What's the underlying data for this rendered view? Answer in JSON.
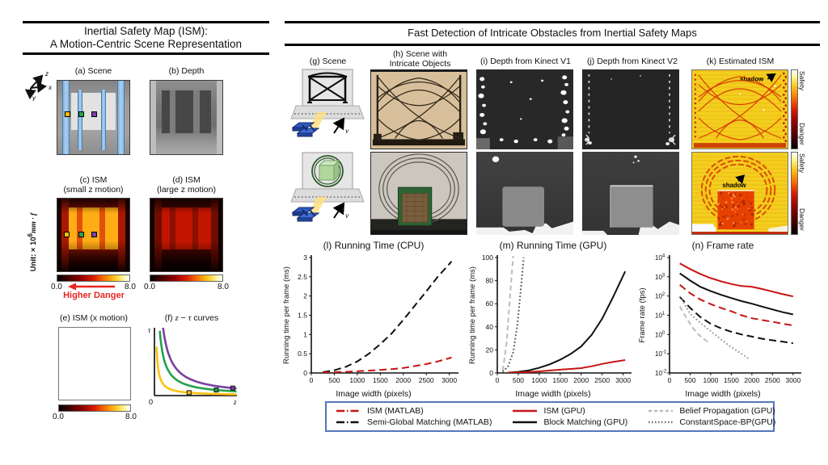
{
  "left_panel": {
    "title_line1": "Inertial Safety Map (ISM):",
    "title_line2": "A Motion-Centric Scene Representation",
    "axis_glyph": {
      "up_right": "z",
      "right": "x",
      "down": "y"
    },
    "label_a": "(a) Scene",
    "label_b": "(b) Depth",
    "label_c1": "(c) ISM",
    "label_c2": "(small z motion)",
    "label_d1": "(d) ISM",
    "label_d2": "(large z motion)",
    "label_e": "(e) ISM (x motion)",
    "f_label": {
      "pre": "(f) ",
      "z": "z",
      "minus": " − ",
      "tau": "τ",
      "post": " curves"
    },
    "unit": {
      "prefix": "Unit: × 10",
      "exp": "6",
      "suffix": "mm · f"
    },
    "cbar_min": "0.0",
    "cbar_max": "8.0",
    "higher_danger": "Higher Danger",
    "danger_color": "#E8251F",
    "marker_colors": [
      "#FFB90A",
      "#28A34D",
      "#7B3FA0"
    ]
  },
  "right_panel": {
    "title": "Fast Detection of Intricate Obstacles from Inertial Safety Maps",
    "label_g": "(g) Scene",
    "label_h_line1": "(h) Scene with",
    "label_h_line2": "Intricate Objects",
    "label_i": "(i) Depth from Kinect V1",
    "label_j": "(j) Depth from Kinect V2",
    "label_k": "(k) Estimated ISM",
    "velocity": "v",
    "shadow": "shadow",
    "colorbar_top": "Safety",
    "colorbar_bottom": "Danger"
  },
  "legend": {
    "border_color": "#5577B8",
    "items": [
      {
        "label": "ISM (MATLAB)",
        "color": "#C81414",
        "sample_dash": "10,3,1.5,3"
      },
      {
        "label": "Semi-Global Matching (MATLAB)",
        "color": "#111111",
        "sample_dash": "10,3,1.5,3"
      },
      {
        "label": "ISM (GPU)",
        "color": "#C81414",
        "sample_dash": ""
      },
      {
        "label": "Block Matching (GPU)",
        "color": "#111111",
        "sample_dash": ""
      },
      {
        "label": "Belief Propagation (GPU)",
        "color": "#BBBBBB",
        "sample_dash": "4,3"
      },
      {
        "label": "ConstantSpace-BP(GPU)",
        "color": "#777777",
        "sample_dash": "1.6,2.4"
      }
    ]
  },
  "chart_data": [
    {
      "id": "f",
      "type": "line",
      "title": "(f) z − τ curves",
      "xlabel": "z",
      "ylabel": "τ",
      "origin_label": "0",
      "description": "Schematic hyperbolic safe-time boundaries τ = k/z for three scene points",
      "series": [
        {
          "name": "near point curve",
          "color": "#FFC20E",
          "k": 0.018,
          "marker_x": 0.42
        },
        {
          "name": "mid point curve",
          "color": "#22A14C",
          "k": 0.062,
          "marker_x": 0.75
        },
        {
          "name": "far point curve",
          "color": "#7B3FA0",
          "k": 0.105,
          "marker_x": 0.95
        }
      ]
    },
    {
      "id": "l",
      "type": "line",
      "title": "(l) Running Time (CPU)",
      "xlabel": "Image width (pixels)",
      "ylabel": "Running time per frame (ms)",
      "xlim": [
        0,
        3200
      ],
      "ylim": [
        0,
        3
      ],
      "xticks": [
        0,
        500,
        1000,
        1500,
        2000,
        2500,
        3000
      ],
      "yticks": [
        0,
        0.5,
        1,
        1.5,
        2,
        2.5,
        3
      ],
      "series": [
        {
          "name": "Semi-Global Matching (MATLAB)",
          "color": "#111111",
          "dash": "9,5",
          "x": [
            250,
            500,
            750,
            1000,
            1250,
            1500,
            1750,
            2000,
            2250,
            2500,
            2750,
            3050
          ],
          "y": [
            0.02,
            0.07,
            0.16,
            0.3,
            0.5,
            0.75,
            1.03,
            1.38,
            1.75,
            2.12,
            2.5,
            2.9
          ]
        },
        {
          "name": "ISM (MATLAB)",
          "color": "#C81414",
          "dash": "9,5",
          "x": [
            250,
            500,
            750,
            1000,
            1250,
            1500,
            1750,
            2000,
            2250,
            2500,
            2750,
            3050
          ],
          "y": [
            0.01,
            0.02,
            0.03,
            0.045,
            0.06,
            0.08,
            0.1,
            0.13,
            0.18,
            0.23,
            0.3,
            0.4
          ]
        }
      ]
    },
    {
      "id": "m",
      "type": "line",
      "title": "(m) Running Time (GPU)",
      "xlabel": "Image width (pixels)",
      "ylabel": "Running time per frame (ms)",
      "xlim": [
        0,
        3200
      ],
      "ylim": [
        0,
        100
      ],
      "xticks": [
        0,
        500,
        1000,
        1500,
        2000,
        2500,
        3000
      ],
      "yticks": [
        0,
        20,
        40,
        60,
        80,
        100
      ],
      "series": [
        {
          "name": "Belief Propagation (GPU)",
          "color": "#BBBBBB",
          "dash": "6,4",
          "x": [
            130,
            220,
            300,
            380
          ],
          "y": [
            2,
            25,
            65,
            102
          ]
        },
        {
          "name": "ConstantSpace-BP(GPU)",
          "color": "#555555",
          "dash": "1.8,2.6",
          "x": [
            130,
            260,
            380,
            480,
            560,
            630
          ],
          "y": [
            1,
            6,
            18,
            42,
            72,
            100
          ]
        },
        {
          "name": "Block Matching (GPU)",
          "color": "#111111",
          "x": [
            250,
            500,
            750,
            1000,
            1250,
            1500,
            1750,
            2000,
            2250,
            2500,
            2750,
            3050
          ],
          "y": [
            0.3,
            1,
            2.2,
            4.5,
            7.5,
            11.5,
            16.5,
            23,
            33,
            47,
            65,
            88
          ]
        },
        {
          "name": "ISM (GPU)",
          "color": "#C81414",
          "x": [
            250,
            500,
            750,
            1000,
            1250,
            1500,
            1750,
            2000,
            2250,
            2500,
            2750,
            3050
          ],
          "y": [
            0.2,
            0.4,
            0.8,
            1.4,
            2.1,
            2.9,
            3.5,
            4.2,
            5.8,
            7.8,
            9.5,
            11.2
          ]
        }
      ]
    },
    {
      "id": "n",
      "type": "line",
      "yscale": "log",
      "title": "(n) Frame rate",
      "xlabel": "Image width (pixels)",
      "ylabel": "Frame rate (fps)",
      "xlim": [
        0,
        3200
      ],
      "ylim": [
        0.01,
        10000
      ],
      "xticks": [
        0,
        500,
        1000,
        1500,
        2000,
        2500,
        3000
      ],
      "yticks_exp": [
        -2,
        -1,
        0,
        1,
        2,
        3,
        4
      ],
      "series": [
        {
          "name": "ISM (GPU)",
          "color": "#C81414",
          "x": [
            250,
            500,
            750,
            1000,
            1250,
            1500,
            1750,
            2000,
            2250,
            2500,
            2750,
            3000
          ],
          "y": [
            5000,
            2500,
            1400,
            850,
            580,
            420,
            330,
            300,
            230,
            170,
            125,
            95
          ]
        },
        {
          "name": "Block Matching (GPU)",
          "color": "#111111",
          "x": [
            250,
            500,
            750,
            1000,
            1250,
            1500,
            1750,
            2000,
            2250,
            2500,
            2750,
            3000
          ],
          "y": [
            1500,
            640,
            300,
            180,
            115,
            78,
            54,
            40,
            28,
            20,
            14.5,
            11
          ]
        },
        {
          "name": "ISM (MATLAB)",
          "color": "#C81414",
          "dash": "9,5",
          "x": [
            250,
            500,
            750,
            1000,
            1250,
            1500,
            1750,
            2000,
            2250,
            2500,
            2750,
            3000
          ],
          "y": [
            380,
            140,
            65,
            38,
            24,
            16,
            10,
            7,
            5.6,
            4.6,
            3.6,
            3
          ]
        },
        {
          "name": "Semi-Global Matching (MATLAB)",
          "color": "#111111",
          "dash": "9,5",
          "x": [
            250,
            500,
            750,
            1000,
            1250,
            1500,
            1750,
            2000,
            2250,
            2500,
            2750,
            3000
          ],
          "y": [
            90,
            24,
            8,
            3.6,
            2.1,
            1.4,
            1,
            0.78,
            0.6,
            0.5,
            0.42,
            0.35
          ]
        },
        {
          "name": "Belief Propagation (GPU)",
          "color": "#BBBBBB",
          "dash": "6,4",
          "x": [
            250,
            400,
            550,
            700,
            850,
            950
          ],
          "y": [
            28,
            8,
            2.4,
            1,
            0.55,
            0.38
          ]
        },
        {
          "name": "ConstantSpace-BP(GPU)",
          "color": "#999999",
          "dash": "1.8,2.6",
          "x": [
            250,
            500,
            750,
            1000,
            1250,
            1500,
            1750,
            1950
          ],
          "y": [
            100,
            12,
            4,
            1.5,
            0.55,
            0.22,
            0.1,
            0.05
          ]
        }
      ]
    }
  ]
}
